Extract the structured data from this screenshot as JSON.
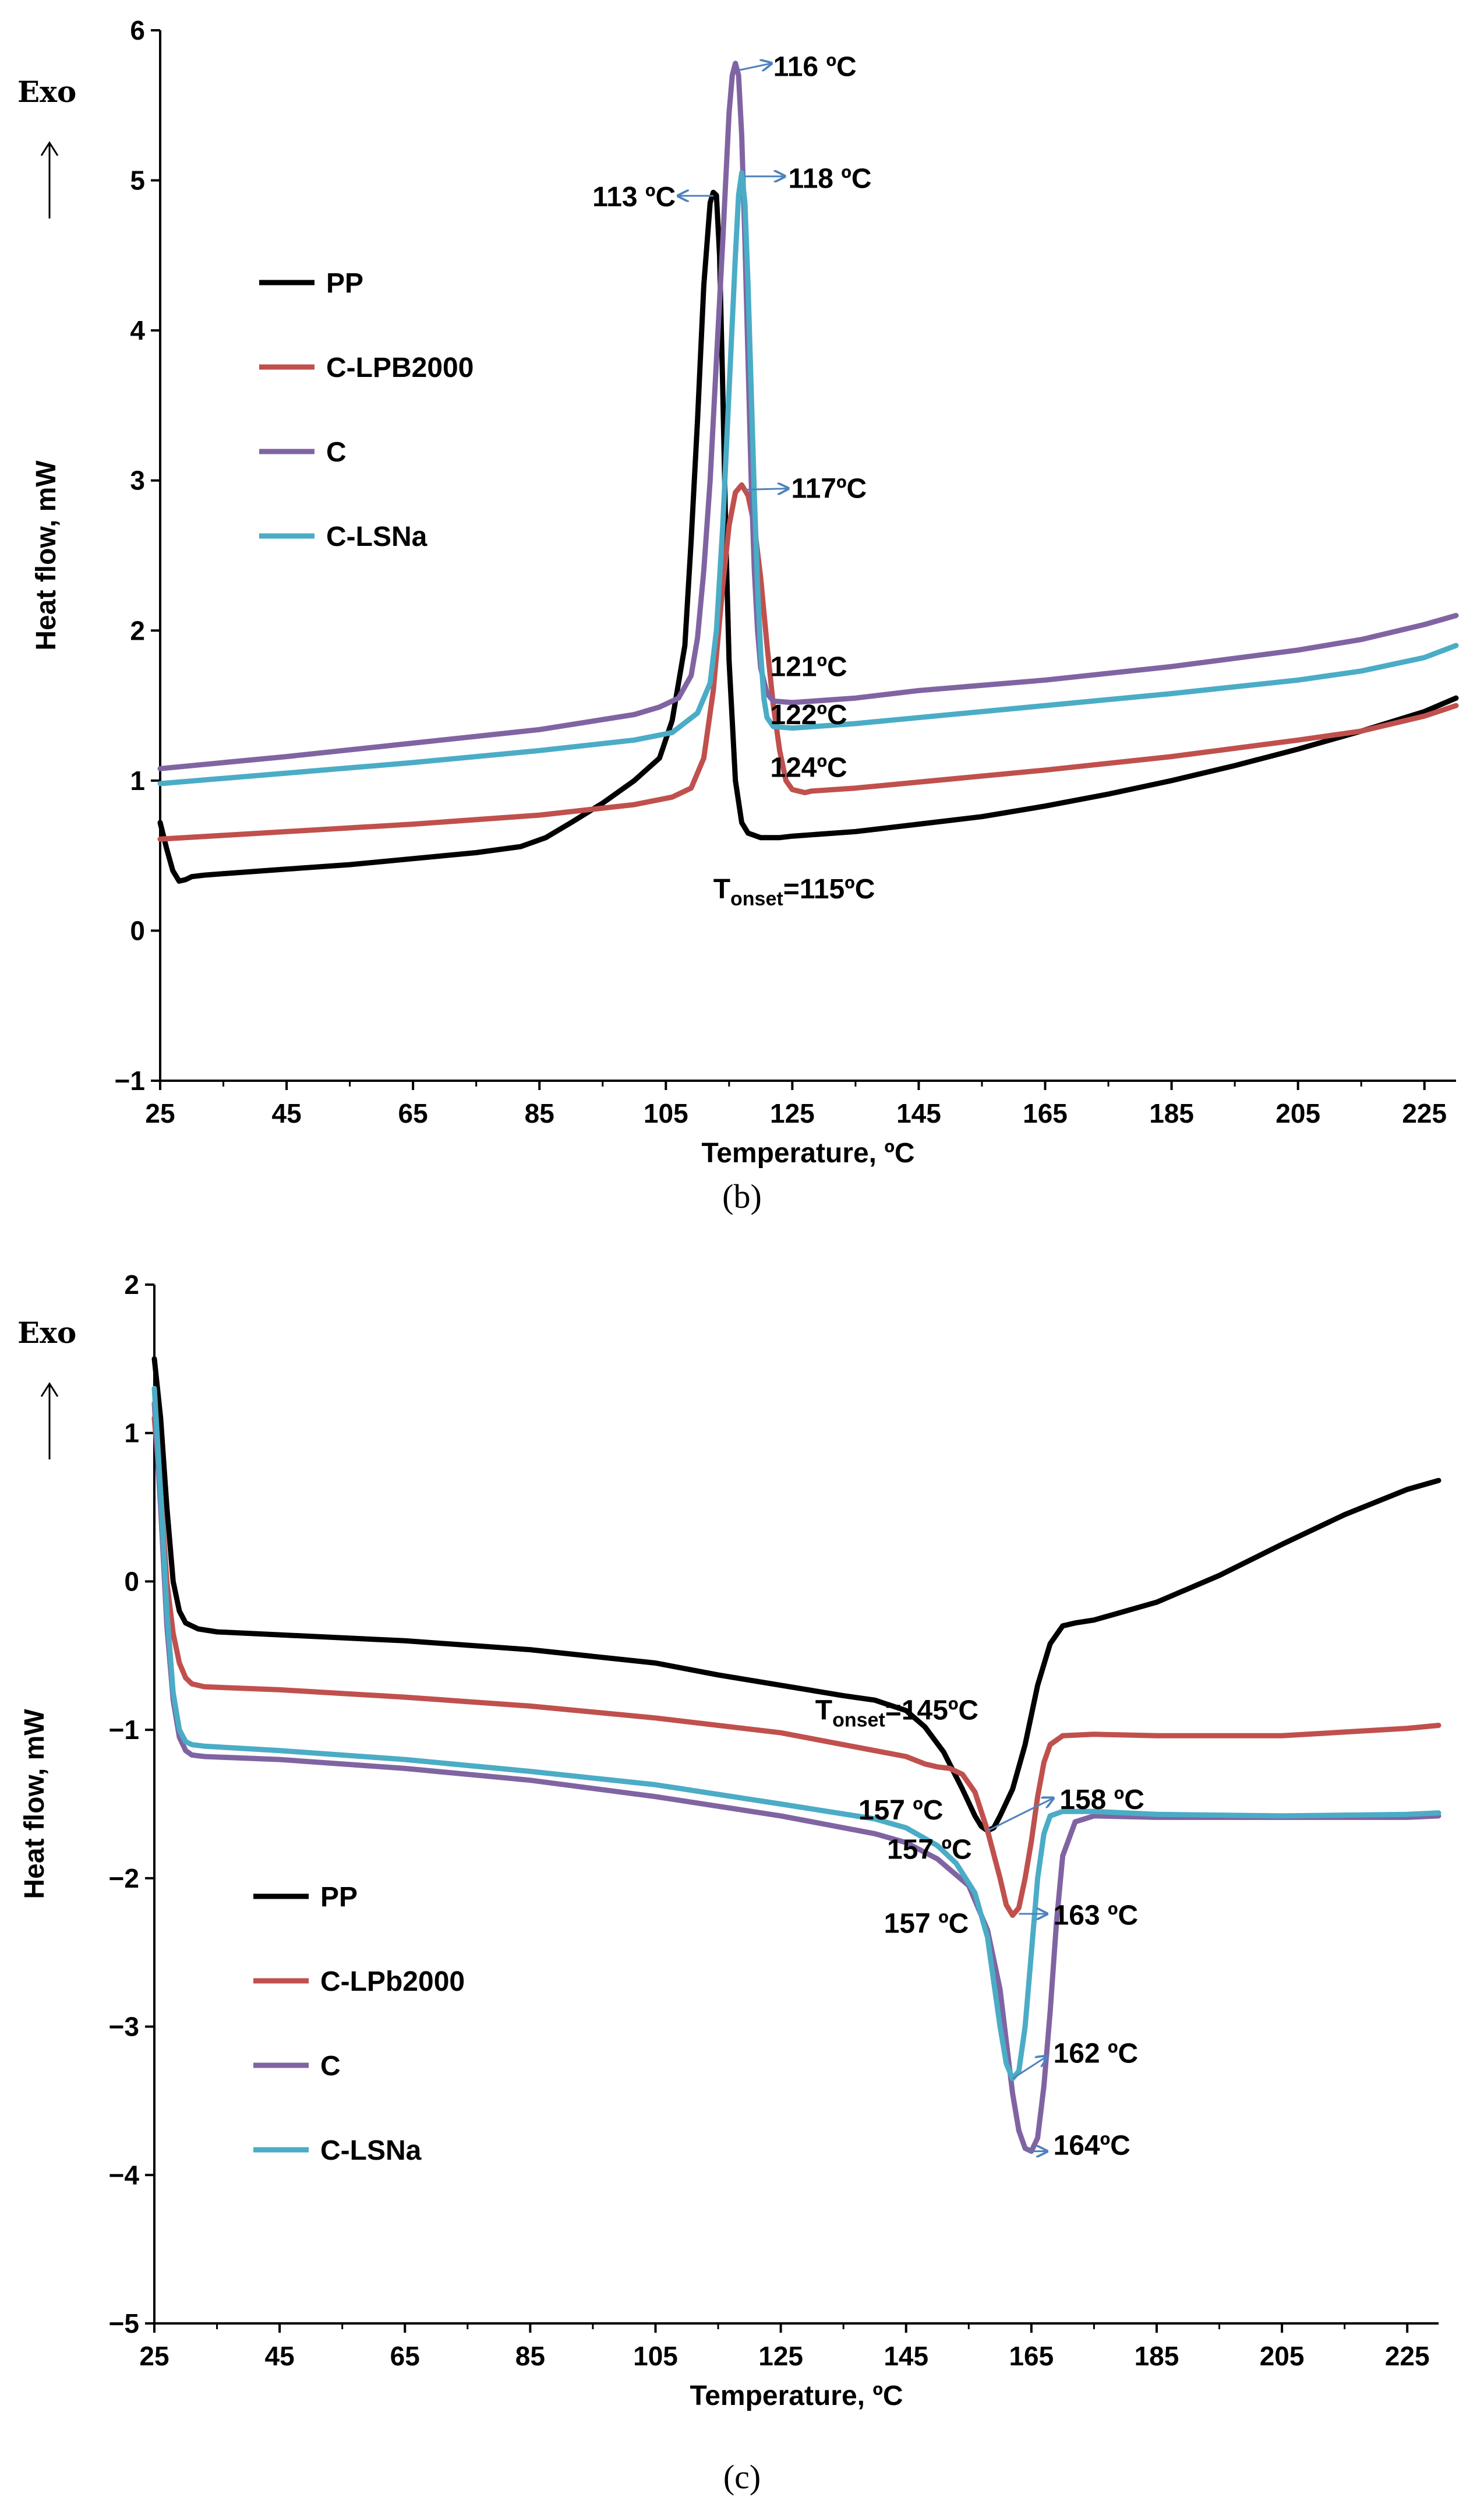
{
  "chart_data": [
    {
      "id": "b",
      "type": "line",
      "caption": "(b)",
      "xlabel": "Temperature, ºC",
      "ylabel": "Heat flow, mW",
      "exo_label": "Exo",
      "xlim": [
        25,
        230
      ],
      "ylim": [
        -1,
        6
      ],
      "x_ticks": [
        "25",
        "45",
        "65",
        "85",
        "105",
        "125",
        "145",
        "165",
        "185",
        "205",
        "225"
      ],
      "y_ticks": [
        "−1",
        "0",
        "1",
        "2",
        "3",
        "4",
        "5",
        "6"
      ],
      "colors": {
        "PP": "#000000",
        "C-LPB2000": "#c0504d",
        "C": "#8064a2",
        "C-LSNa": "#4bacc6",
        "arrow": "#4f81bd"
      },
      "series": [
        {
          "name": "PP",
          "color": "#000000",
          "x": [
            25,
            26,
            27,
            28,
            29,
            30,
            32,
            35,
            45,
            55,
            65,
            75,
            82,
            86,
            90,
            95,
            100,
            104,
            106,
            108,
            109,
            110,
            111,
            112,
            112.5,
            113,
            113.5,
            114,
            114.5,
            115,
            116,
            117,
            118,
            120,
            123,
            125,
            135,
            145,
            155,
            165,
            175,
            185,
            195,
            205,
            215,
            225,
            230
          ],
          "y": [
            0.72,
            0.55,
            0.4,
            0.33,
            0.34,
            0.36,
            0.37,
            0.38,
            0.41,
            0.44,
            0.48,
            0.52,
            0.56,
            0.62,
            0.72,
            0.85,
            1.0,
            1.15,
            1.4,
            1.9,
            2.6,
            3.4,
            4.3,
            4.85,
            4.92,
            4.9,
            4.5,
            3.6,
            2.6,
            1.8,
            1.0,
            0.72,
            0.65,
            0.62,
            0.62,
            0.63,
            0.66,
            0.71,
            0.76,
            0.83,
            0.91,
            1.0,
            1.1,
            1.21,
            1.33,
            1.46,
            1.55
          ]
        },
        {
          "name": "C-LPB2000",
          "color": "#c0504d",
          "x": [
            25,
            45,
            65,
            85,
            100,
            106,
            109,
            111,
            112.5,
            114,
            115,
            116,
            117,
            118,
            119,
            120,
            121,
            122,
            123,
            124,
            125,
            126,
            127,
            128,
            135,
            145,
            165,
            185,
            205,
            215,
            225,
            230
          ],
          "y": [
            0.61,
            0.66,
            0.71,
            0.77,
            0.84,
            0.89,
            0.95,
            1.15,
            1.6,
            2.3,
            2.7,
            2.92,
            2.97,
            2.9,
            2.7,
            2.35,
            1.9,
            1.5,
            1.2,
            1.0,
            0.94,
            0.93,
            0.92,
            0.93,
            0.95,
            0.99,
            1.07,
            1.16,
            1.27,
            1.33,
            1.43,
            1.5
          ]
        },
        {
          "name": "C",
          "color": "#8064a2",
          "x": [
            25,
            45,
            65,
            85,
            100,
            104,
            107,
            109,
            110,
            111,
            112,
            113,
            114,
            115,
            115.5,
            116,
            116.5,
            117,
            117.5,
            118,
            118.5,
            119,
            119.5,
            120,
            121,
            122,
            125,
            135,
            145,
            165,
            185,
            205,
            215,
            225,
            230
          ],
          "y": [
            1.08,
            1.16,
            1.25,
            1.34,
            1.44,
            1.49,
            1.55,
            1.7,
            1.95,
            2.4,
            3.0,
            3.8,
            4.6,
            5.45,
            5.7,
            5.78,
            5.7,
            5.3,
            4.6,
            3.8,
            3.0,
            2.4,
            2.0,
            1.75,
            1.58,
            1.53,
            1.52,
            1.55,
            1.6,
            1.67,
            1.76,
            1.87,
            1.94,
            2.04,
            2.1
          ]
        },
        {
          "name": "C-LSNa",
          "color": "#4bacc6",
          "x": [
            25,
            45,
            65,
            85,
            100,
            106,
            110,
            112,
            113,
            114,
            115,
            116,
            116.5,
            117,
            117.5,
            118,
            118.5,
            119,
            119.5,
            120,
            120.5,
            121,
            122,
            125,
            135,
            145,
            165,
            185,
            205,
            215,
            225,
            230
          ],
          "y": [
            0.98,
            1.05,
            1.12,
            1.2,
            1.27,
            1.32,
            1.45,
            1.65,
            2.0,
            2.7,
            3.6,
            4.5,
            4.9,
            5.05,
            4.85,
            4.3,
            3.6,
            2.9,
            2.3,
            1.85,
            1.55,
            1.42,
            1.36,
            1.35,
            1.38,
            1.42,
            1.5,
            1.58,
            1.67,
            1.73,
            1.82,
            1.9
          ]
        }
      ],
      "legend": [
        "PP",
        "C-LPB2000",
        "C",
        "C-LSNa"
      ],
      "annotations": {
        "a116": "116 ºC",
        "a113": "113 ºC",
        "a118": "118 ºC",
        "a117": "117ºC",
        "a121": "121ºC",
        "a122": "122ºC",
        "a124": "124ºC",
        "onset_T": "T",
        "onset_sub": "onset",
        "onset_val": "=115ºC"
      }
    },
    {
      "id": "c",
      "type": "line",
      "caption": "(c)",
      "xlabel": "Temperature, ºC",
      "ylabel": "Heat flow, mW",
      "exo_label": "Exo",
      "xlim": [
        25,
        230
      ],
      "ylim": [
        -5,
        2
      ],
      "x_ticks": [
        "25",
        "45",
        "65",
        "85",
        "105",
        "125",
        "145",
        "165",
        "185",
        "205",
        "225"
      ],
      "y_ticks": [
        "−5",
        "−4",
        "−3",
        "−2",
        "−1",
        "0",
        "1",
        "2"
      ],
      "colors": {
        "PP": "#000000",
        "C-LPb2000": "#c0504d",
        "C": "#8064a2",
        "C-LSNa": "#4bacc6",
        "arrow": "#4f81bd"
      },
      "series": [
        {
          "name": "PP",
          "color": "#000000",
          "x": [
            25,
            26,
            27,
            28,
            29,
            30,
            31,
            32,
            35,
            45,
            65,
            85,
            105,
            115,
            125,
            135,
            140,
            145,
            148,
            151,
            154,
            156,
            157,
            158,
            159,
            160,
            162,
            164,
            166,
            168,
            170,
            172,
            175,
            185,
            195,
            205,
            215,
            225,
            230
          ],
          "y": [
            1.5,
            1.1,
            0.5,
            0.0,
            -0.2,
            -0.28,
            -0.3,
            -0.32,
            -0.34,
            -0.36,
            -0.4,
            -0.46,
            -0.55,
            -0.63,
            -0.7,
            -0.77,
            -0.8,
            -0.87,
            -0.98,
            -1.15,
            -1.4,
            -1.58,
            -1.65,
            -1.68,
            -1.66,
            -1.58,
            -1.4,
            -1.1,
            -0.7,
            -0.42,
            -0.3,
            -0.28,
            -0.26,
            -0.14,
            0.04,
            0.25,
            0.45,
            0.62,
            0.68
          ]
        },
        {
          "name": "C-LPb2000",
          "color": "#c0504d",
          "x": [
            25,
            26,
            27,
            28,
            29,
            30,
            31,
            33,
            45,
            65,
            85,
            105,
            125,
            140,
            145,
            148,
            150,
            152,
            154,
            156,
            158,
            160,
            161,
            162,
            163,
            164,
            165,
            166,
            167,
            168,
            170,
            175,
            185,
            205,
            225,
            230
          ],
          "y": [
            1.1,
            0.6,
            0.0,
            -0.35,
            -0.55,
            -0.65,
            -0.69,
            -0.71,
            -0.73,
            -0.78,
            -0.84,
            -0.92,
            -1.02,
            -1.14,
            -1.18,
            -1.23,
            -1.25,
            -1.26,
            -1.3,
            -1.42,
            -1.68,
            -2.0,
            -2.18,
            -2.25,
            -2.2,
            -2.0,
            -1.75,
            -1.45,
            -1.22,
            -1.1,
            -1.04,
            -1.03,
            -1.04,
            -1.04,
            -0.99,
            -0.97
          ]
        },
        {
          "name": "C",
          "color": "#8064a2",
          "x": [
            25,
            26,
            27,
            28,
            29,
            30,
            31,
            33,
            45,
            65,
            85,
            105,
            125,
            140,
            145,
            150,
            155,
            158,
            160,
            161,
            162,
            163,
            164,
            165,
            166,
            167,
            168,
            169,
            170,
            172,
            175,
            185,
            205,
            225,
            230
          ],
          "y": [
            1.2,
            0.5,
            -0.3,
            -0.8,
            -1.05,
            -1.14,
            -1.17,
            -1.18,
            -1.2,
            -1.26,
            -1.34,
            -1.45,
            -1.58,
            -1.7,
            -1.76,
            -1.87,
            -2.05,
            -2.35,
            -2.75,
            -3.1,
            -3.45,
            -3.7,
            -3.82,
            -3.84,
            -3.75,
            -3.4,
            -2.9,
            -2.3,
            -1.85,
            -1.62,
            -1.58,
            -1.59,
            -1.59,
            -1.59,
            -1.58
          ]
        },
        {
          "name": "C-LSNa",
          "color": "#4bacc6",
          "x": [
            25,
            26,
            27,
            28,
            29,
            30,
            31,
            33,
            45,
            65,
            85,
            105,
            125,
            140,
            145,
            150,
            153,
            156,
            158,
            159,
            160,
            161,
            162,
            163,
            164,
            165,
            166,
            167,
            168,
            170,
            175,
            185,
            205,
            225,
            230
          ],
          "y": [
            1.3,
            0.6,
            -0.2,
            -0.75,
            -1.0,
            -1.08,
            -1.1,
            -1.11,
            -1.14,
            -1.2,
            -1.28,
            -1.37,
            -1.5,
            -1.6,
            -1.66,
            -1.78,
            -1.9,
            -2.1,
            -2.4,
            -2.7,
            -3.0,
            -3.25,
            -3.35,
            -3.3,
            -3.0,
            -2.5,
            -2.0,
            -1.7,
            -1.58,
            -1.55,
            -1.55,
            -1.57,
            -1.58,
            -1.57,
            -1.56
          ]
        }
      ],
      "legend": [
        "PP",
        "C-LPb2000",
        "C",
        "C-LSNa"
      ],
      "annotations": {
        "onset_T": "T",
        "onset_sub": "onset",
        "onset_val": "=145ºC",
        "a157a": "157 ºC",
        "a157b": "157 ºC",
        "a157c": "157 ºC",
        "a158": "158 ºC",
        "a163": "163 ºC",
        "a162": "162 ºC",
        "a164": "164ºC"
      }
    }
  ]
}
